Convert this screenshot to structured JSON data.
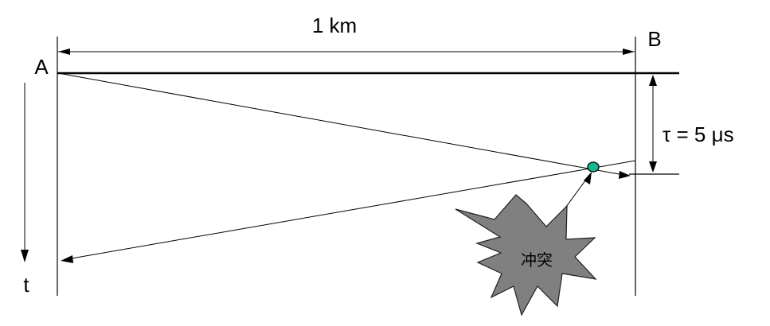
{
  "labels": {
    "distance": "1 km",
    "node_a": "A",
    "node_b": "B",
    "propagation_delay": "τ = 5 μs",
    "time_axis": "t",
    "collision": "冲突"
  },
  "colors": {
    "line": "#000000",
    "collision_point": "#1ab891",
    "collision_burst": "#808080",
    "background": "#ffffff"
  }
}
